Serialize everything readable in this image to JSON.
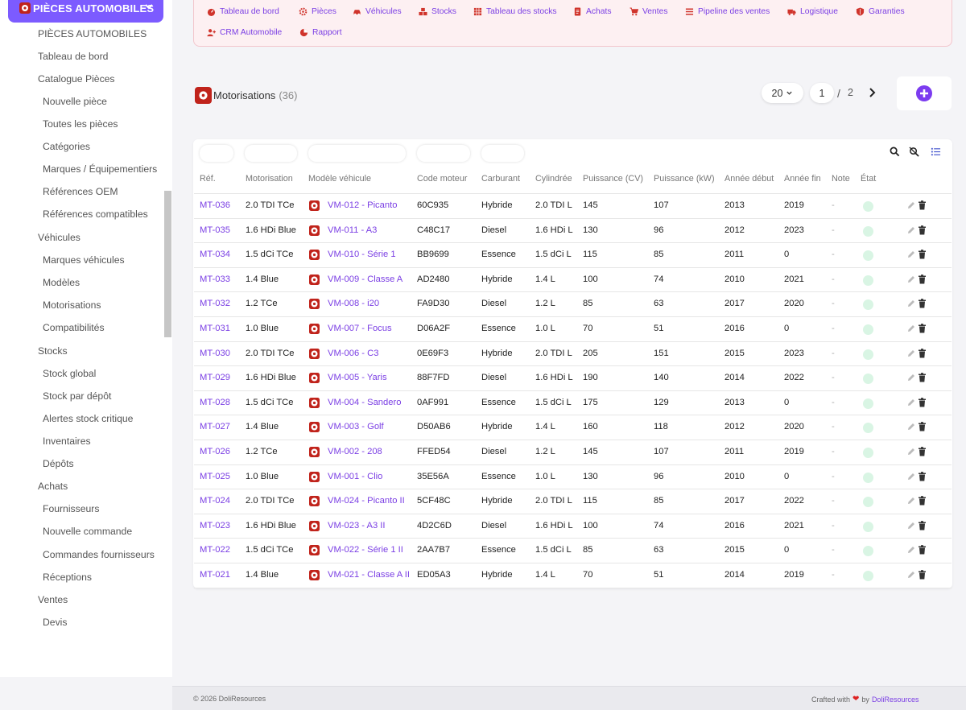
{
  "sidebar": {
    "module_label": "PIÈCES AUTOMOBILES",
    "items": [
      {
        "label": "PIÈCES AUTOMOBILES",
        "level": 1
      },
      {
        "label": "Tableau de bord",
        "level": 1
      },
      {
        "label": "Catalogue Pièces",
        "level": 1
      },
      {
        "label": "Nouvelle pièce",
        "level": 2
      },
      {
        "label": "Toutes les pièces",
        "level": 2
      },
      {
        "label": "Catégories",
        "level": 2
      },
      {
        "label": "Marques / Équipementiers",
        "level": 2
      },
      {
        "label": "Références OEM",
        "level": 2
      },
      {
        "label": "Références compatibles",
        "level": 2
      },
      {
        "label": "Véhicules",
        "level": 1
      },
      {
        "label": "Marques véhicules",
        "level": 2
      },
      {
        "label": "Modèles",
        "level": 2
      },
      {
        "label": "Motorisations",
        "level": 2
      },
      {
        "label": "Compatibilités",
        "level": 2
      },
      {
        "label": "Stocks",
        "level": 1
      },
      {
        "label": "Stock global",
        "level": 2
      },
      {
        "label": "Stock par dépôt",
        "level": 2
      },
      {
        "label": "Alertes stock critique",
        "level": 2
      },
      {
        "label": "Inventaires",
        "level": 2
      },
      {
        "label": "Dépôts",
        "level": 2
      },
      {
        "label": "Achats",
        "level": 1
      },
      {
        "label": "Fournisseurs",
        "level": 2
      },
      {
        "label": "Nouvelle commande",
        "level": 2
      },
      {
        "label": "Commandes fournisseurs",
        "level": 2
      },
      {
        "label": "Réceptions",
        "level": 2
      },
      {
        "label": "Ventes",
        "level": 1
      },
      {
        "label": "Devis",
        "level": 2
      }
    ]
  },
  "topnav": {
    "items": [
      {
        "label": "Tableau de bord",
        "icon": "dashboard-icon"
      },
      {
        "label": "Pièces",
        "icon": "gear-icon"
      },
      {
        "label": "Véhicules",
        "icon": "car-icon"
      },
      {
        "label": "Stocks",
        "icon": "boxes-icon"
      },
      {
        "label": "Tableau des stocks",
        "icon": "grid-icon"
      },
      {
        "label": "Achats",
        "icon": "invoice-icon"
      },
      {
        "label": "Ventes",
        "icon": "cart-icon"
      },
      {
        "label": "Pipeline des ventes",
        "icon": "pipeline-icon"
      },
      {
        "label": "Logistique",
        "icon": "truck-icon"
      },
      {
        "label": "Garanties",
        "icon": "shield-icon"
      },
      {
        "label": "CRM Automobile",
        "icon": "user-plus-icon"
      },
      {
        "label": "Rapport",
        "icon": "pie-chart-icon"
      }
    ]
  },
  "header": {
    "title": "Motorisations",
    "count": "(36)",
    "per_page": "20",
    "page": "1",
    "page_separator": "/",
    "total_pages": "2"
  },
  "table": {
    "columns": [
      "Réf.",
      "Motorisation",
      "Modèle véhicule",
      "Code moteur",
      "Carburant",
      "Cylindrée",
      "Puissance (CV)",
      "Puissance (kW)",
      "Année début",
      "Année fin",
      "Note",
      "État"
    ],
    "rows": [
      {
        "ref": "MT-036",
        "motorisation": "2.0 TDI TCe",
        "modele": "VM-012 - Picanto",
        "code": "60C935",
        "carburant": "Hybride",
        "cylindree": "2.0 TDI L",
        "cv": "145",
        "kw": "107",
        "debut": "2013",
        "fin": "2019",
        "note": "-"
      },
      {
        "ref": "MT-035",
        "motorisation": "1.6 HDi Blue",
        "modele": "VM-011 - A3",
        "code": "C48C17",
        "carburant": "Diesel",
        "cylindree": "1.6 HDi L",
        "cv": "130",
        "kw": "96",
        "debut": "2012",
        "fin": "2023",
        "note": "-"
      },
      {
        "ref": "MT-034",
        "motorisation": "1.5 dCi TCe",
        "modele": "VM-010 - Série 1",
        "code": "BB9699",
        "carburant": "Essence",
        "cylindree": "1.5 dCi L",
        "cv": "115",
        "kw": "85",
        "debut": "2011",
        "fin": "0",
        "note": "-"
      },
      {
        "ref": "MT-033",
        "motorisation": "1.4 Blue",
        "modele": "VM-009 - Classe A",
        "code": "AD2480",
        "carburant": "Hybride",
        "cylindree": "1.4 L",
        "cv": "100",
        "kw": "74",
        "debut": "2010",
        "fin": "2021",
        "note": "-"
      },
      {
        "ref": "MT-032",
        "motorisation": "1.2 TCe",
        "modele": "VM-008 - i20",
        "code": "FA9D30",
        "carburant": "Diesel",
        "cylindree": "1.2 L",
        "cv": "85",
        "kw": "63",
        "debut": "2017",
        "fin": "2020",
        "note": "-"
      },
      {
        "ref": "MT-031",
        "motorisation": "1.0 Blue",
        "modele": "VM-007 - Focus",
        "code": "D06A2F",
        "carburant": "Essence",
        "cylindree": "1.0 L",
        "cv": "70",
        "kw": "51",
        "debut": "2016",
        "fin": "0",
        "note": "-"
      },
      {
        "ref": "MT-030",
        "motorisation": "2.0 TDI TCe",
        "modele": "VM-006 - C3",
        "code": "0E69F3",
        "carburant": "Hybride",
        "cylindree": "2.0 TDI L",
        "cv": "205",
        "kw": "151",
        "debut": "2015",
        "fin": "2023",
        "note": "-"
      },
      {
        "ref": "MT-029",
        "motorisation": "1.6 HDi Blue",
        "modele": "VM-005 - Yaris",
        "code": "88F7FD",
        "carburant": "Diesel",
        "cylindree": "1.6 HDi L",
        "cv": "190",
        "kw": "140",
        "debut": "2014",
        "fin": "2022",
        "note": "-"
      },
      {
        "ref": "MT-028",
        "motorisation": "1.5 dCi TCe",
        "modele": "VM-004 - Sandero",
        "code": "0AF991",
        "carburant": "Essence",
        "cylindree": "1.5 dCi L",
        "cv": "175",
        "kw": "129",
        "debut": "2013",
        "fin": "0",
        "note": "-"
      },
      {
        "ref": "MT-027",
        "motorisation": "1.4 Blue",
        "modele": "VM-003 - Golf",
        "code": "D50AB6",
        "carburant": "Hybride",
        "cylindree": "1.4 L",
        "cv": "160",
        "kw": "118",
        "debut": "2012",
        "fin": "2020",
        "note": "-"
      },
      {
        "ref": "MT-026",
        "motorisation": "1.2 TCe",
        "modele": "VM-002 - 208",
        "code": "FFED54",
        "carburant": "Diesel",
        "cylindree": "1.2 L",
        "cv": "145",
        "kw": "107",
        "debut": "2011",
        "fin": "2019",
        "note": "-"
      },
      {
        "ref": "MT-025",
        "motorisation": "1.0 Blue",
        "modele": "VM-001 - Clio",
        "code": "35E56A",
        "carburant": "Essence",
        "cylindree": "1.0 L",
        "cv": "130",
        "kw": "96",
        "debut": "2010",
        "fin": "0",
        "note": "-"
      },
      {
        "ref": "MT-024",
        "motorisation": "2.0 TDI TCe",
        "modele": "VM-024 - Picanto II",
        "code": "5CF48C",
        "carburant": "Hybride",
        "cylindree": "2.0 TDI L",
        "cv": "115",
        "kw": "85",
        "debut": "2017",
        "fin": "2022",
        "note": "-"
      },
      {
        "ref": "MT-023",
        "motorisation": "1.6 HDi Blue",
        "modele": "VM-023 - A3 II",
        "code": "4D2C6D",
        "carburant": "Diesel",
        "cylindree": "1.6 HDi L",
        "cv": "100",
        "kw": "74",
        "debut": "2016",
        "fin": "2021",
        "note": "-"
      },
      {
        "ref": "MT-022",
        "motorisation": "1.5 dCi TCe",
        "modele": "VM-022 - Série 1 II",
        "code": "2AA7B7",
        "carburant": "Essence",
        "cylindree": "1.5 dCi L",
        "cv": "85",
        "kw": "63",
        "debut": "2015",
        "fin": "0",
        "note": "-"
      },
      {
        "ref": "MT-021",
        "motorisation": "1.4 Blue",
        "modele": "VM-021 - Classe A II",
        "code": "ED05A3",
        "carburant": "Hybride",
        "cylindree": "1.4 L",
        "cv": "70",
        "kw": "51",
        "debut": "2014",
        "fin": "2019",
        "note": "-"
      }
    ]
  },
  "footer": {
    "copyright": "© 2026 DoliResources",
    "crafted": "Crafted with",
    "by": "by",
    "brand": "DoliResources"
  },
  "colors": {
    "accent": "#7c5bff",
    "link": "#7b3fe4",
    "nav_bg": "#fdf0f2",
    "status": "#d9f5e4",
    "module_red": "#c0231b"
  }
}
